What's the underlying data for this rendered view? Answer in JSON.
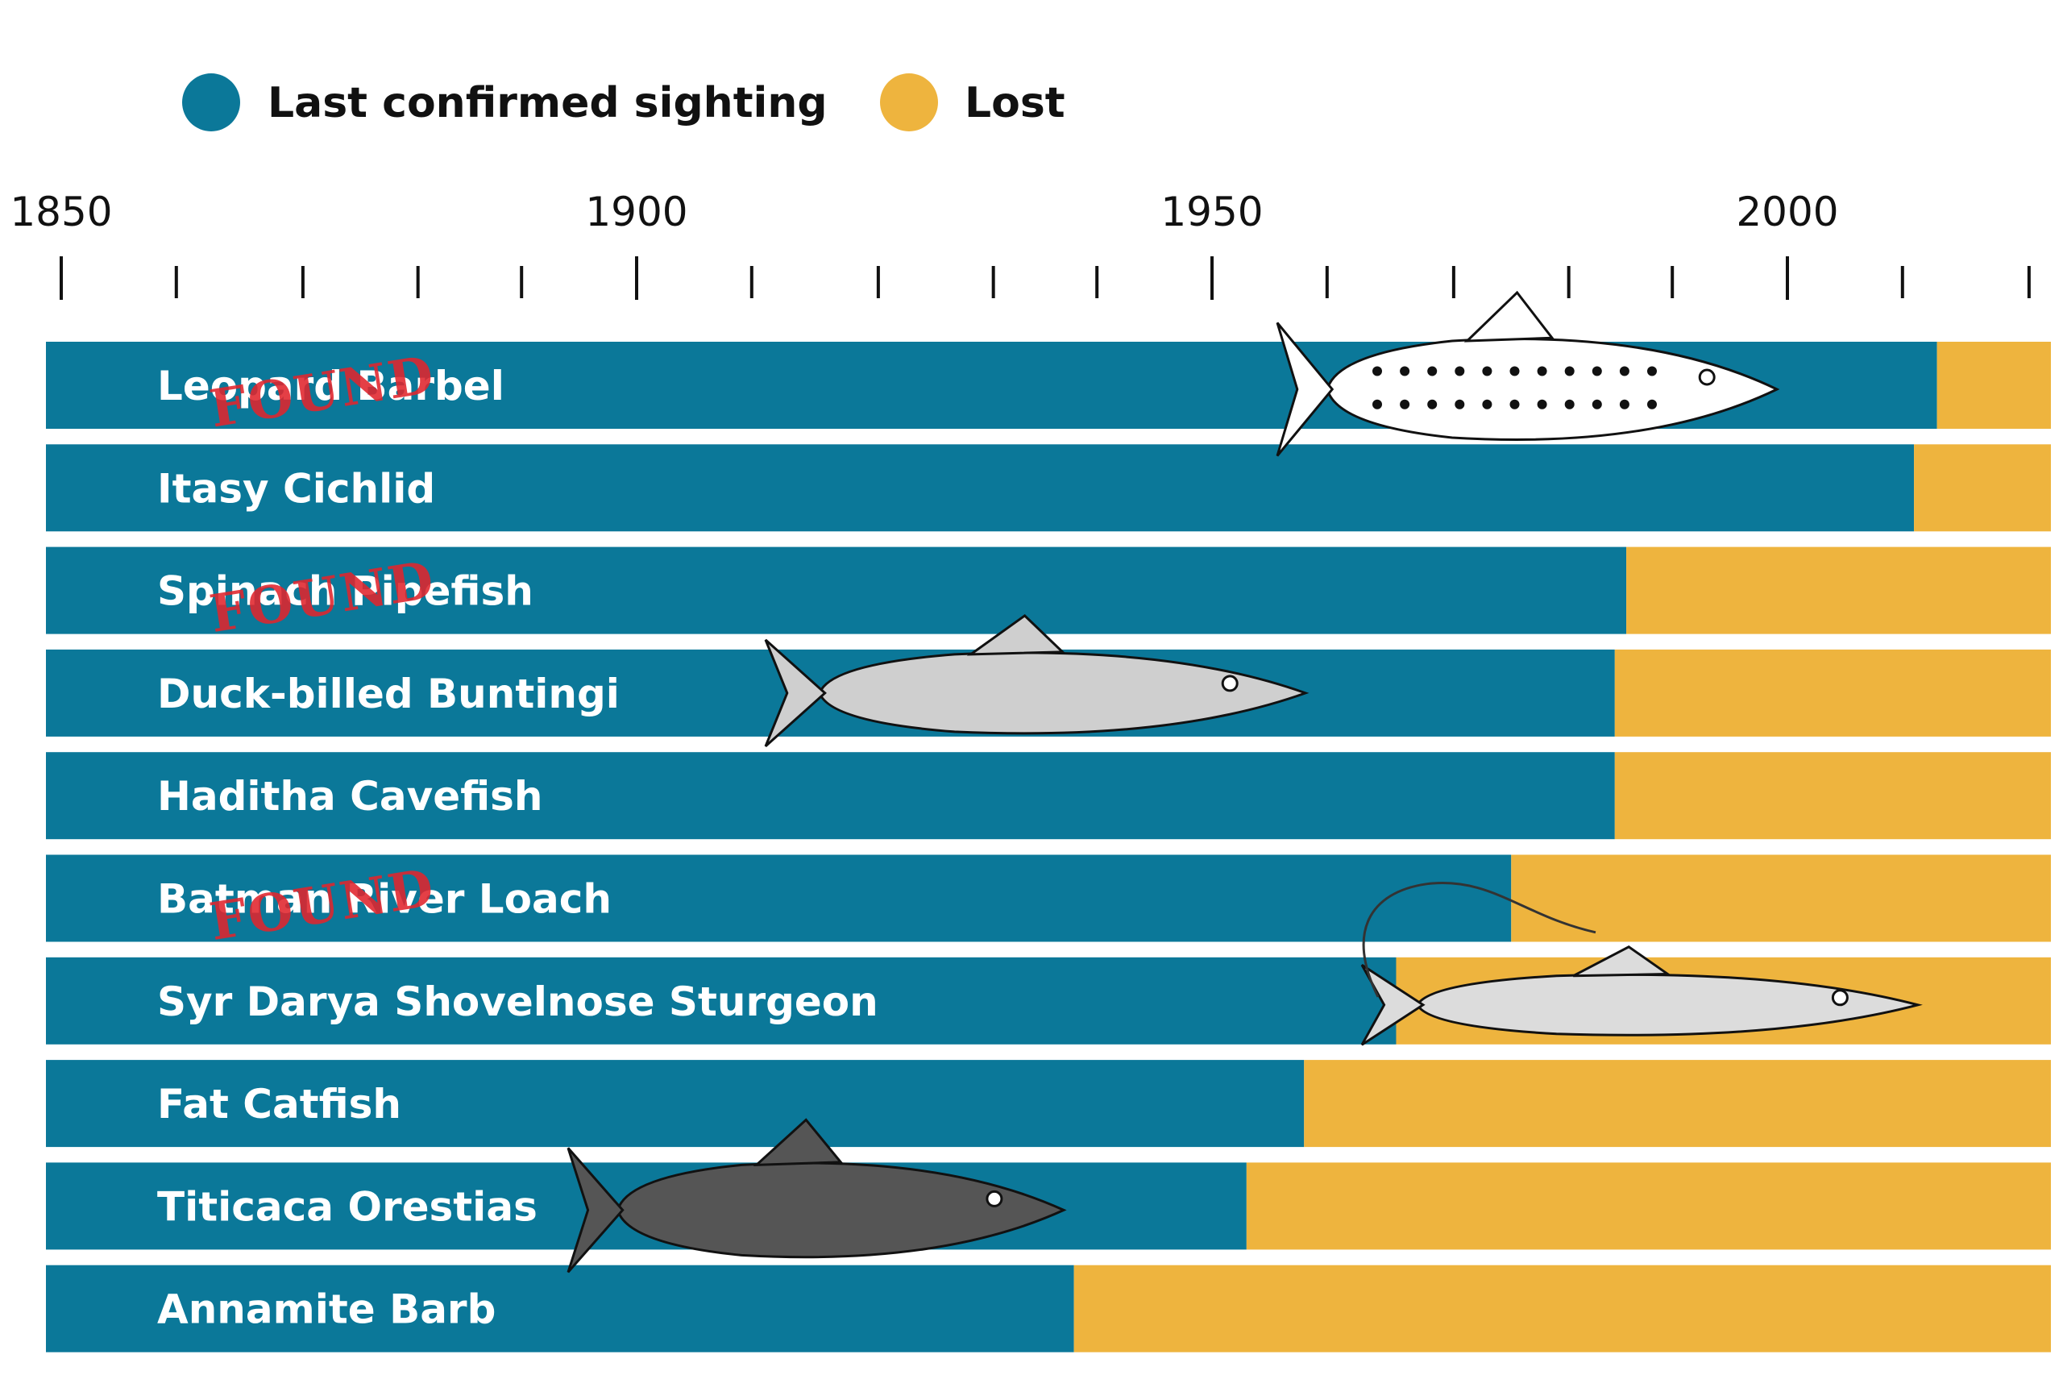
{
  "chart_data": {
    "type": "bar",
    "orientation": "horizontal-stacked",
    "legend": [
      {
        "label": "Last confirmed sighting",
        "color": "#0b7899"
      },
      {
        "label": "Lost",
        "color": "#eeb43e"
      }
    ],
    "legend_placement": "top-left",
    "x_tick_labels": [
      "1850",
      "1900",
      "1950",
      "2000"
    ],
    "x_major_ticks": [
      1850,
      1900,
      1950,
      2000
    ],
    "x_minor_ticks": [
      1860,
      1871,
      1881,
      1890,
      1910,
      1921,
      1931,
      1940,
      1960,
      1971,
      1981,
      1990,
      2010,
      2021
    ],
    "xlim": [
      1849,
      2024
    ],
    "grid": false,
    "stamp_text": "FOUND",
    "categories": [
      "Leopard Barbel",
      "Itasy Cichlid",
      "Spinach Pipefish",
      "Duck-billed Buntingi",
      "Haditha Cavefish",
      "Batman River Loach",
      "Syr Darya Shovelnose Sturgeon",
      "Fat Catfish",
      "Titicaca Orestias",
      "Annamite Barb"
    ],
    "last_confirmed_sighting": [
      2013,
      2011,
      1986,
      1985,
      1985,
      1976,
      1966,
      1958,
      1953,
      1938
    ],
    "found": [
      true,
      false,
      true,
      false,
      false,
      true,
      false,
      false,
      false,
      false
    ]
  }
}
